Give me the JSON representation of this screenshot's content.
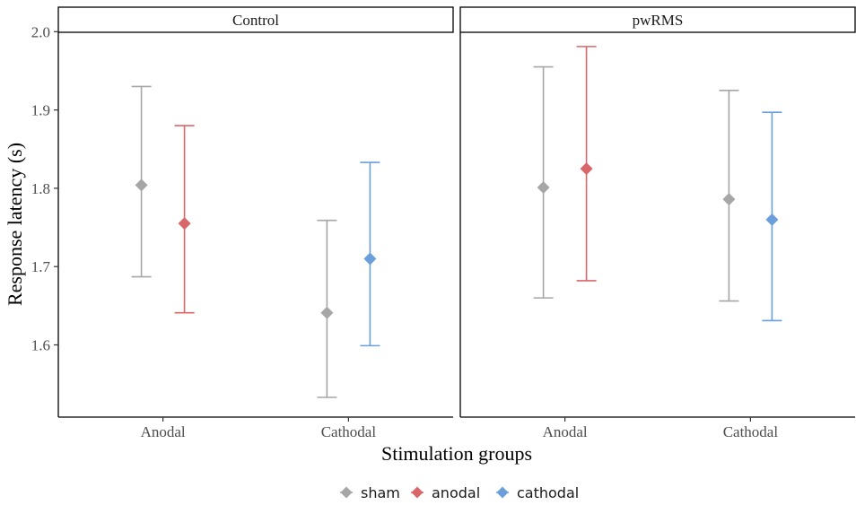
{
  "chart_data": {
    "type": "scatter",
    "subtype": "point-with-error-bars, faceted",
    "xlabel": "Stimulation groups",
    "ylabel": "Response latency (s)",
    "ylim": [
      1.515,
      2.005
    ],
    "yticks": [
      "1.6",
      "1.7",
      "1.8",
      "1.9",
      "2.0"
    ],
    "ytick_values": [
      1.6,
      1.7,
      1.8,
      1.9,
      2.0
    ],
    "categories": [
      "Anodal",
      "Cathodal"
    ],
    "grid": false,
    "legend_position": "bottom",
    "legend": [
      {
        "key": "sham",
        "label": "sham",
        "color": "#a6a6a6"
      },
      {
        "key": "anodal",
        "label": "anodal",
        "color": "#d9676a"
      },
      {
        "key": "cathodal",
        "label": "cathodal",
        "color": "#6a9fdc"
      }
    ],
    "facets": [
      {
        "label": "Control",
        "points": [
          {
            "category": "Anodal",
            "series": "sham",
            "y": 1.804,
            "ymin": 1.687,
            "ymax": 1.93
          },
          {
            "category": "Anodal",
            "series": "anodal",
            "y": 1.755,
            "ymin": 1.641,
            "ymax": 1.88
          },
          {
            "category": "Cathodal",
            "series": "sham",
            "y": 1.641,
            "ymin": 1.533,
            "ymax": 1.759
          },
          {
            "category": "Cathodal",
            "series": "cathodal",
            "y": 1.71,
            "ymin": 1.599,
            "ymax": 1.833
          }
        ]
      },
      {
        "label": "pwRMS",
        "points": [
          {
            "category": "Anodal",
            "series": "sham",
            "y": 1.801,
            "ymin": 1.66,
            "ymax": 1.955
          },
          {
            "category": "Anodal",
            "series": "anodal",
            "y": 1.825,
            "ymin": 1.682,
            "ymax": 1.981
          },
          {
            "category": "Cathodal",
            "series": "sham",
            "y": 1.786,
            "ymin": 1.656,
            "ymax": 1.925
          },
          {
            "category": "Cathodal",
            "series": "cathodal",
            "y": 1.76,
            "ymin": 1.631,
            "ymax": 1.897
          }
        ]
      }
    ]
  }
}
